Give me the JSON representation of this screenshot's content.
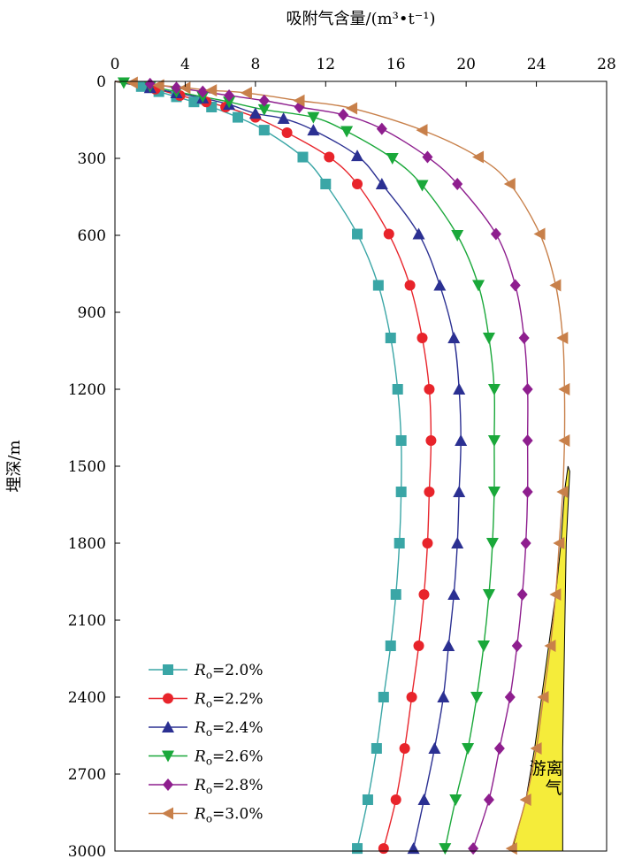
{
  "chart_data": {
    "type": "line",
    "title": "",
    "xlabel": "吸附气含量/(m³•t⁻¹)",
    "ylabel": "埋深/m",
    "x_axis_position": "top",
    "y_axis_inverted": true,
    "xlim": [
      0,
      28
    ],
    "ylim": [
      0,
      3000
    ],
    "xticks": [
      "0",
      "4",
      "8",
      "12",
      "16",
      "20",
      "24",
      "28"
    ],
    "yticks": [
      "0",
      "300",
      "600",
      "900",
      "1200",
      "1500",
      "1800",
      "2100",
      "2400",
      "2700",
      "3000"
    ],
    "grid": false,
    "legend_position": "bottom-left",
    "series": [
      {
        "name": "2.0%",
        "legend_prefix": "R",
        "legend_sub": "o",
        "legend_eq": "=",
        "color": "#3aa6a6",
        "marker": "square",
        "points": [
          [
            1.5,
            20
          ],
          [
            2.5,
            40
          ],
          [
            3.5,
            60
          ],
          [
            4.5,
            80
          ],
          [
            5.5,
            100
          ],
          [
            7,
            140
          ],
          [
            8.5,
            190
          ],
          [
            10.7,
            295
          ],
          [
            12,
            400
          ],
          [
            13.8,
            595
          ],
          [
            15,
            795
          ],
          [
            15.7,
            1000
          ],
          [
            16.1,
            1200
          ],
          [
            16.3,
            1400
          ],
          [
            16.3,
            1600
          ],
          [
            16.2,
            1800
          ],
          [
            16,
            2000
          ],
          [
            15.7,
            2200
          ],
          [
            15.3,
            2400
          ],
          [
            14.9,
            2600
          ],
          [
            14.4,
            2800
          ],
          [
            13.8,
            2990
          ]
        ]
      },
      {
        "name": "2.2%",
        "legend_prefix": "R",
        "legend_sub": "o",
        "legend_eq": "=",
        "color": "#e8242b",
        "marker": "circle",
        "points": [
          [
            2.3,
            30
          ],
          [
            3.7,
            55
          ],
          [
            5.2,
            80
          ],
          [
            6.3,
            100
          ],
          [
            8,
            140
          ],
          [
            9.8,
            200
          ],
          [
            12.2,
            295
          ],
          [
            13.8,
            400
          ],
          [
            15.6,
            595
          ],
          [
            16.8,
            795
          ],
          [
            17.5,
            1000
          ],
          [
            17.9,
            1200
          ],
          [
            18,
            1400
          ],
          [
            17.9,
            1600
          ],
          [
            17.8,
            1800
          ],
          [
            17.6,
            2000
          ],
          [
            17.3,
            2200
          ],
          [
            16.9,
            2400
          ],
          [
            16.5,
            2600
          ],
          [
            16,
            2800
          ],
          [
            15.3,
            2990
          ]
        ]
      },
      {
        "name": "2.4%",
        "legend_prefix": "R",
        "legend_sub": "o",
        "legend_eq": "=",
        "color": "#2b3092",
        "marker": "triangle-up",
        "points": [
          [
            2,
            25
          ],
          [
            3.5,
            45
          ],
          [
            5,
            65
          ],
          [
            6.5,
            90
          ],
          [
            8,
            125
          ],
          [
            9.6,
            145
          ],
          [
            11.3,
            190
          ],
          [
            13.8,
            290
          ],
          [
            15.2,
            400
          ],
          [
            17.3,
            595
          ],
          [
            18.5,
            795
          ],
          [
            19.3,
            1000
          ],
          [
            19.6,
            1200
          ],
          [
            19.7,
            1400
          ],
          [
            19.6,
            1600
          ],
          [
            19.5,
            1800
          ],
          [
            19.3,
            2000
          ],
          [
            19,
            2200
          ],
          [
            18.7,
            2400
          ],
          [
            18.2,
            2600
          ],
          [
            17.6,
            2800
          ],
          [
            17,
            2990
          ]
        ]
      },
      {
        "name": "2.6%",
        "legend_prefix": "R",
        "legend_sub": "o",
        "legend_eq": "=",
        "color": "#1aa83a",
        "marker": "triangle-down",
        "points": [
          [
            0.5,
            5
          ],
          [
            2,
            20
          ],
          [
            3.5,
            40
          ],
          [
            5,
            60
          ],
          [
            6.5,
            80
          ],
          [
            8.5,
            110
          ],
          [
            11.3,
            140
          ],
          [
            13.2,
            195
          ],
          [
            15.8,
            300
          ],
          [
            17.5,
            405
          ],
          [
            19.5,
            600
          ],
          [
            20.7,
            795
          ],
          [
            21.3,
            1000
          ],
          [
            21.6,
            1200
          ],
          [
            21.6,
            1400
          ],
          [
            21.6,
            1600
          ],
          [
            21.5,
            1800
          ],
          [
            21.3,
            2000
          ],
          [
            21,
            2200
          ],
          [
            20.6,
            2400
          ],
          [
            20.1,
            2600
          ],
          [
            19.4,
            2800
          ],
          [
            18.8,
            2990
          ]
        ]
      },
      {
        "name": "2.8%",
        "legend_prefix": "R",
        "legend_sub": "o",
        "legend_eq": "=",
        "color": "#8e1e8e",
        "marker": "diamond",
        "points": [
          [
            2,
            10
          ],
          [
            3.5,
            25
          ],
          [
            5,
            40
          ],
          [
            6.5,
            55
          ],
          [
            8.5,
            75
          ],
          [
            10.5,
            100
          ],
          [
            13,
            130
          ],
          [
            15.2,
            185
          ],
          [
            17.8,
            295
          ],
          [
            19.5,
            400
          ],
          [
            21.7,
            595
          ],
          [
            22.8,
            795
          ],
          [
            23.3,
            1000
          ],
          [
            23.5,
            1200
          ],
          [
            23.5,
            1400
          ],
          [
            23.5,
            1600
          ],
          [
            23.4,
            1800
          ],
          [
            23.2,
            2000
          ],
          [
            22.9,
            2200
          ],
          [
            22.5,
            2400
          ],
          [
            21.9,
            2600
          ],
          [
            21.3,
            2800
          ],
          [
            20.4,
            2990
          ]
        ]
      },
      {
        "name": "3.0%",
        "legend_prefix": "R",
        "legend_sub": "o",
        "legend_eq": "=",
        "color": "#c8804a",
        "marker": "triangle-left",
        "points": [
          [
            1,
            5
          ],
          [
            2.5,
            15
          ],
          [
            4,
            25
          ],
          [
            5.5,
            35
          ],
          [
            7.5,
            45
          ],
          [
            10.5,
            75
          ],
          [
            13.5,
            105
          ],
          [
            17.5,
            190
          ],
          [
            20.7,
            295
          ],
          [
            22.5,
            400
          ],
          [
            24.2,
            595
          ],
          [
            25.1,
            795
          ],
          [
            25.5,
            1000
          ],
          [
            25.6,
            1200
          ],
          [
            25.6,
            1400
          ],
          [
            25.5,
            1600
          ],
          [
            25.3,
            1800
          ],
          [
            25.1,
            2000
          ],
          [
            24.8,
            2200
          ],
          [
            24.4,
            2400
          ],
          [
            24,
            2600
          ],
          [
            23.4,
            2800
          ],
          [
            22.6,
            2990
          ]
        ]
      }
    ],
    "free_gas_region": {
      "label": "游离气",
      "fill_color": "#f5ec3a",
      "boundary": [
        [
          25.8,
          1500
        ],
        [
          25.6,
          1600
        ],
        [
          25.4,
          1800
        ],
        [
          25.1,
          2000
        ],
        [
          24.7,
          2200
        ],
        [
          24.3,
          2400
        ],
        [
          23.9,
          2600
        ],
        [
          23.4,
          2800
        ],
        [
          22.6,
          3000
        ],
        [
          25.5,
          3000
        ],
        [
          25.5,
          2600
        ],
        [
          25.6,
          2200
        ],
        [
          25.7,
          1800
        ],
        [
          25.9,
          1520
        ]
      ]
    }
  }
}
